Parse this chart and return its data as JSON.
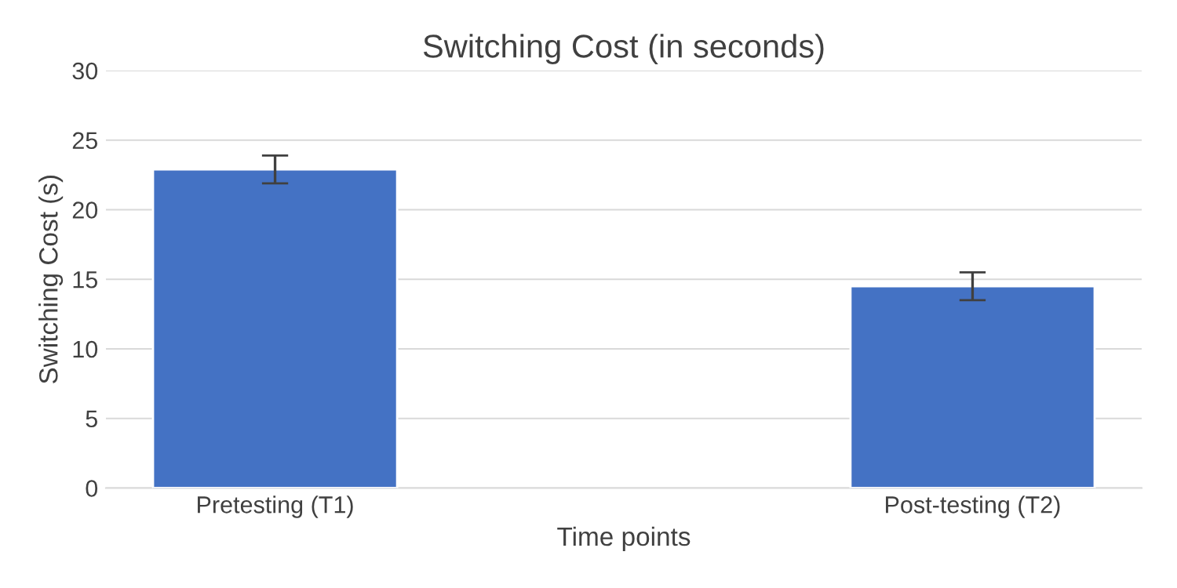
{
  "chart_data": {
    "type": "bar",
    "title": "Switching Cost (in seconds)",
    "xlabel": "Time points",
    "ylabel": "Switching Cost (s)",
    "categories": [
      "Pretesting (T1)",
      "Post-testing (T2)"
    ],
    "values": [
      22.9,
      14.5
    ],
    "errors": [
      1.0,
      1.0
    ],
    "color": "#4472c4",
    "ylim": [
      0,
      30
    ],
    "yticks": [
      0,
      5,
      10,
      15,
      20,
      25,
      30
    ],
    "grid": "y"
  }
}
